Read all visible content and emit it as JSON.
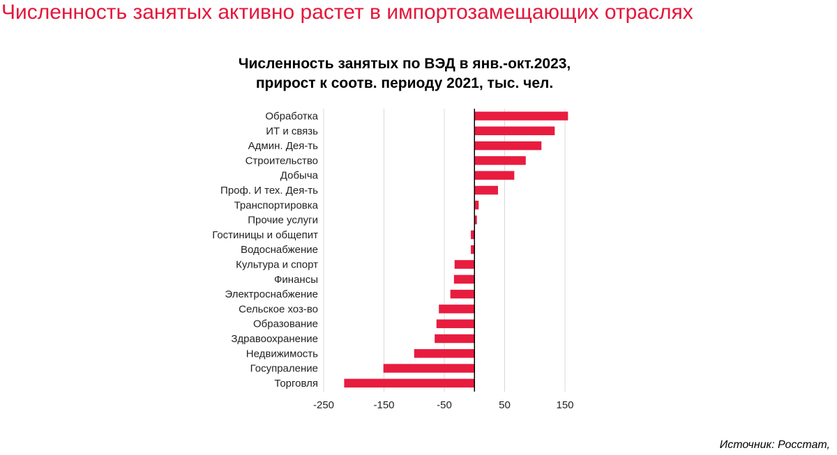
{
  "headline": "Численность занятых активно растет в импортозамещающих отраслях",
  "source": "Источник: Росстат,",
  "colors": {
    "accent": "#e4163a",
    "bar": "#e81c3f",
    "grid": "#d9d9d9",
    "axis": "#000000",
    "text": "#222222"
  },
  "chart_data": {
    "type": "bar",
    "orientation": "horizontal",
    "title": "Численность занятых по ВЭД в янв.-окт.2023,\nприрост к соотв. периоду 2021, тыс. чел.",
    "xlabel": "",
    "ylabel": "",
    "xlim": [
      -250,
      150
    ],
    "xticks": [
      -250,
      -150,
      -50,
      50,
      150
    ],
    "xtick_labels": [
      "-250",
      "-150",
      "-50",
      "50",
      "150"
    ],
    "grid": true,
    "legend": "none",
    "categories": [
      "Обработка",
      "ИТ и связь",
      "Админ. Дея-ть",
      "Строительство",
      "Добыча",
      "Проф. И тех. Дея-ть",
      "Транспортировка",
      "Прочие услуги",
      "Гостиницы и общепит",
      "Водоснабжение",
      "Культура и спорт",
      "Финансы",
      "Электроснабжение",
      "Сельское хоз-во",
      "Образование",
      "Здравоохранение",
      "Недвижимость",
      "Госупраление",
      "Торговля"
    ],
    "values": [
      155,
      133,
      111,
      85,
      66,
      39,
      7,
      4,
      -6,
      -6,
      -33,
      -34,
      -40,
      -59,
      -63,
      -66,
      -100,
      -151,
      -216
    ]
  }
}
